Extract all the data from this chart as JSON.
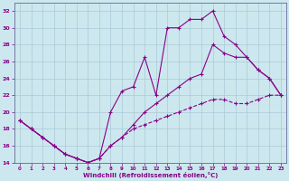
{
  "xlabel": "Windchill (Refroidissement éolien,°C)",
  "background_color": "#cce8ee",
  "grid_color": "#aac8d8",
  "line_color": "#880088",
  "xlim": [
    -0.5,
    23.5
  ],
  "ylim": [
    14,
    33
  ],
  "yticks": [
    14,
    16,
    18,
    20,
    22,
    24,
    26,
    28,
    30,
    32
  ],
  "xticks": [
    0,
    1,
    2,
    3,
    4,
    5,
    6,
    7,
    8,
    9,
    10,
    11,
    12,
    13,
    14,
    15,
    16,
    17,
    18,
    19,
    20,
    21,
    22,
    23
  ],
  "line1_x": [
    0,
    1,
    2,
    3,
    4,
    5,
    6,
    7,
    8,
    9,
    10,
    11,
    12,
    13,
    14,
    15,
    16,
    17,
    18,
    19,
    20,
    21,
    22,
    23
  ],
  "line1_y": [
    19,
    18,
    17,
    16,
    15,
    14.5,
    14,
    14.5,
    20,
    22.5,
    23,
    26.5,
    22,
    30,
    30,
    31,
    31,
    32,
    29,
    28,
    26.5,
    25,
    24,
    22
  ],
  "line2_x": [
    0,
    1,
    2,
    3,
    4,
    5,
    6,
    7,
    8,
    9,
    10,
    11,
    12,
    13,
    14,
    15,
    16,
    17,
    18,
    19,
    20,
    21,
    22,
    23
  ],
  "line2_y": [
    19,
    18,
    17,
    16,
    15,
    14.5,
    14,
    14.5,
    16,
    17,
    18.5,
    20,
    21,
    22,
    23,
    24,
    24.5,
    28,
    27,
    26.5,
    26.5,
    25,
    24,
    22
  ],
  "line3_x": [
    0,
    1,
    2,
    3,
    4,
    5,
    6,
    7,
    8,
    9,
    10,
    11,
    12,
    13,
    14,
    15,
    16,
    17,
    18,
    19,
    20,
    21,
    22,
    23
  ],
  "line3_y": [
    19,
    18,
    17,
    16,
    15,
    14.5,
    14,
    14.5,
    16,
    17,
    18,
    18.5,
    19,
    19.5,
    20,
    20.5,
    21,
    21.5,
    21.5,
    21,
    21,
    21.5,
    22,
    22
  ]
}
